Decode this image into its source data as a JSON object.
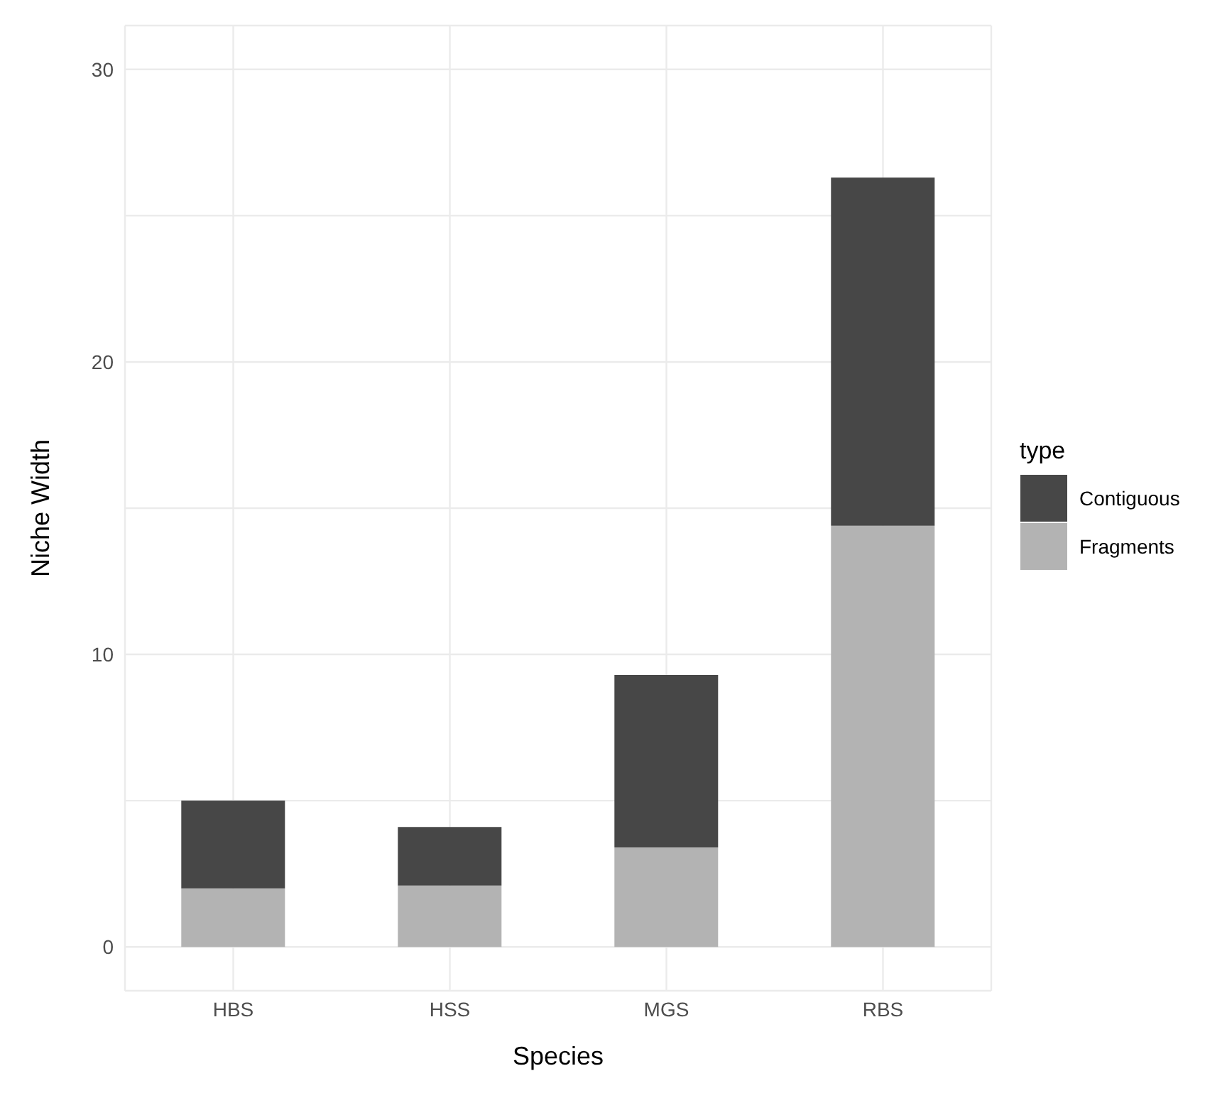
{
  "chart_data": {
    "type": "bar",
    "stacked": true,
    "xlabel": "Species",
    "ylabel": "Niche Width",
    "legend_title": "type",
    "legend": "right",
    "grid": true,
    "categories": [
      "HBS",
      "HSS",
      "MGS",
      "RBS"
    ],
    "series": [
      {
        "name": "Fragments",
        "color": "#b3b3b3",
        "values": [
          2.0,
          2.1,
          3.4,
          14.4
        ]
      },
      {
        "name": "Contiguous",
        "color": "#474747",
        "values": [
          3.0,
          2.0,
          5.9,
          11.9
        ]
      }
    ],
    "ylim": [
      -1.5,
      31.5
    ],
    "yticks": [
      0,
      {
        "value": 5,
        "label": null
      },
      10,
      {
        "value": 15,
        "label": null
      },
      20,
      {
        "value": 25,
        "label": null
      },
      30
    ]
  }
}
